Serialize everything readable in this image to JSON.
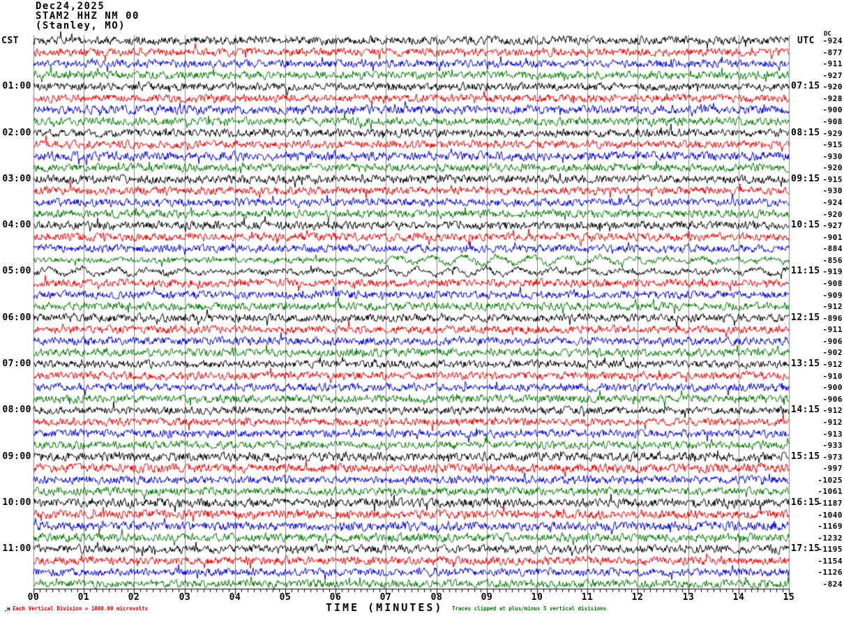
{
  "header": {
    "date": "Dec24,2025",
    "station": "STAM2 HHZ NM 00",
    "location": "(Stanley, MO)"
  },
  "axis": {
    "left_timezone": "CST",
    "right_timezone": "UTC",
    "dc_label": "DC",
    "x_title": "TIME (MINUTES)",
    "x_ticks": [
      "00",
      "01",
      "02",
      "03",
      "04",
      "05",
      "06",
      "07",
      "08",
      "09",
      "10",
      "11",
      "12",
      "13",
      "14",
      "15"
    ]
  },
  "notes": {
    "scale": "Each Vertical Division = 1000.00 microvolts",
    "clip": "Traces clipped at plus/minus 5 vertical divisions",
    "watermark": ",M"
  },
  "colors": {
    "trace_cycle": [
      "#000000",
      "#ee0000",
      "#0000dd",
      "#007700"
    ],
    "grid": "#808080",
    "axis": "#000000",
    "scale_note": "#dd0000",
    "clip_note": "#007700",
    "text": "#000000"
  },
  "chart_data": {
    "type": "line",
    "title": "Helicorder seismogram STAM2 HHZ NM 00 (Stanley, MO) Dec24,2025",
    "x_label": "TIME (MINUTES)",
    "x_range": [
      0,
      15
    ],
    "minutes_per_row": 15,
    "rows_per_hour": 4,
    "default_amp": 5,
    "rows": [
      {
        "dc": -924,
        "cst": null,
        "utc": null,
        "amp": 5.2
      },
      {
        "dc": -877,
        "cst": null,
        "utc": null
      },
      {
        "dc": -911,
        "cst": null,
        "utc": null
      },
      {
        "dc": -927,
        "cst": null,
        "utc": null
      },
      {
        "dc": -920,
        "cst": "01:00",
        "utc": "07:15"
      },
      {
        "dc": -928,
        "cst": null,
        "utc": null
      },
      {
        "dc": -900,
        "cst": null,
        "utc": null,
        "amp": 5.4
      },
      {
        "dc": -908,
        "cst": null,
        "utc": null
      },
      {
        "dc": -929,
        "cst": "02:00",
        "utc": "08:15"
      },
      {
        "dc": -915,
        "cst": null,
        "utc": null
      },
      {
        "dc": -930,
        "cst": null,
        "utc": null,
        "amp": 5.5
      },
      {
        "dc": -920,
        "cst": null,
        "utc": null
      },
      {
        "dc": -915,
        "cst": "03:00",
        "utc": "09:15",
        "amp": 5.3
      },
      {
        "dc": -930,
        "cst": null,
        "utc": null
      },
      {
        "dc": -924,
        "cst": null,
        "utc": null
      },
      {
        "dc": -920,
        "cst": null,
        "utc": null
      },
      {
        "dc": -927,
        "cst": "04:00",
        "utc": "10:15",
        "amp": 5.2
      },
      {
        "dc": -901,
        "cst": null,
        "utc": null
      },
      {
        "dc": -884,
        "cst": null,
        "utc": null
      },
      {
        "dc": -856,
        "cst": null,
        "utc": null,
        "amp": 3.6,
        "slow": 6,
        "slow_start": 0.45
      },
      {
        "dc": -919,
        "cst": "05:00",
        "utc": "11:15",
        "amp": 3.6,
        "slow": 5,
        "slow_start": 0
      },
      {
        "dc": -908,
        "cst": null,
        "utc": null
      },
      {
        "dc": -909,
        "cst": null,
        "utc": null
      },
      {
        "dc": -912,
        "cst": null,
        "utc": null
      },
      {
        "dc": -896,
        "cst": "06:00",
        "utc": "12:15"
      },
      {
        "dc": -911,
        "cst": null,
        "utc": null
      },
      {
        "dc": -906,
        "cst": null,
        "utc": null
      },
      {
        "dc": -902,
        "cst": null,
        "utc": null
      },
      {
        "dc": -912,
        "cst": "07:00",
        "utc": "13:15"
      },
      {
        "dc": -910,
        "cst": null,
        "utc": null
      },
      {
        "dc": -900,
        "cst": null,
        "utc": null
      },
      {
        "dc": -906,
        "cst": null,
        "utc": null
      },
      {
        "dc": -912,
        "cst": "08:00",
        "utc": "14:15"
      },
      {
        "dc": -912,
        "cst": null,
        "utc": null
      },
      {
        "dc": -913,
        "cst": null,
        "utc": null
      },
      {
        "dc": -933,
        "cst": null,
        "utc": null
      },
      {
        "dc": -973,
        "cst": "09:00",
        "utc": "15:15",
        "amp": 5.6
      },
      {
        "dc": -997,
        "cst": null,
        "utc": null,
        "amp": 5.5
      },
      {
        "dc": -1025,
        "cst": null,
        "utc": null
      },
      {
        "dc": -1061,
        "cst": null,
        "utc": null
      },
      {
        "dc": -1187,
        "cst": "10:00",
        "utc": "16:15",
        "amp": 5.6
      },
      {
        "dc": -1040,
        "cst": null,
        "utc": null,
        "amp": 5.5
      },
      {
        "dc": -1169,
        "cst": null,
        "utc": null,
        "amp": 5.5
      },
      {
        "dc": -1232,
        "cst": null,
        "utc": null,
        "amp": 5.4
      },
      {
        "dc": -1195,
        "cst": "11:00",
        "utc": "17:15",
        "amp": 5.2
      },
      {
        "dc": -1154,
        "cst": null,
        "utc": null,
        "amp": 5.2
      },
      {
        "dc": -1126,
        "cst": null,
        "utc": null
      },
      {
        "dc": -824,
        "cst": null,
        "utc": null
      }
    ]
  }
}
